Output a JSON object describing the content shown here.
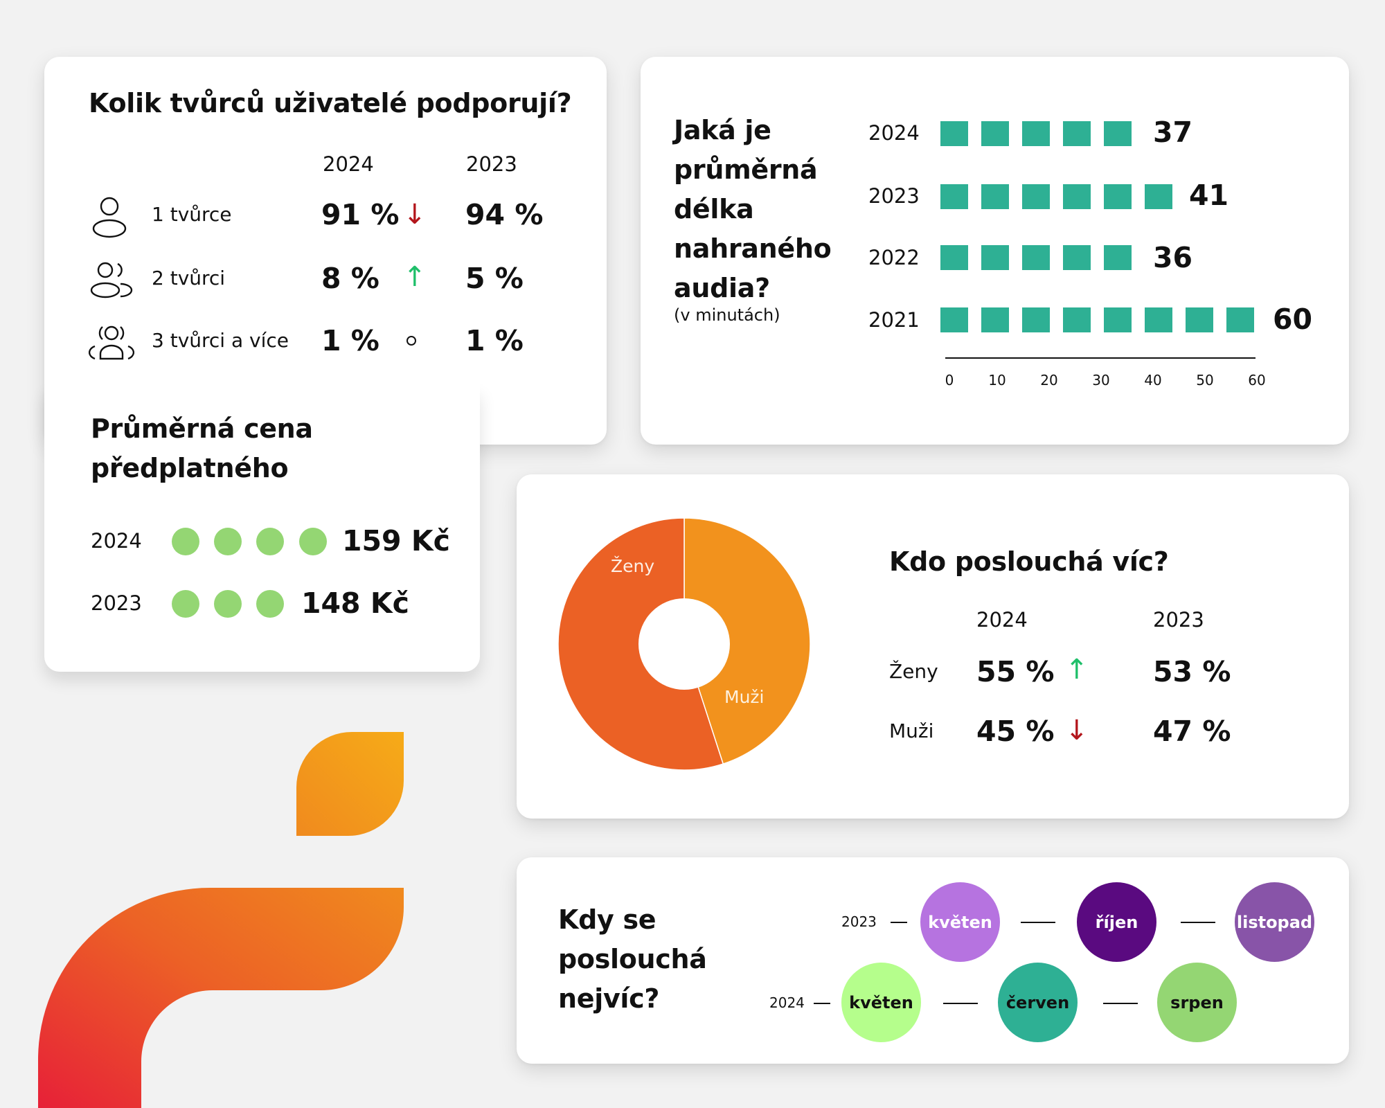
{
  "colors": {
    "background": "#f2f2f2",
    "card": "#ffffff",
    "bar": "#2eb094",
    "price_dot": "#94d673",
    "arrow_down": "#b3161c",
    "arrow_up": "#1fbf6a",
    "pie_zeny": "#eb6125",
    "pie_muzi": "#f2921d"
  },
  "creators": {
    "title": "Kolik tvůrců uživatelé podporují?",
    "col_2024": "2024",
    "col_2023": "2023",
    "rows": [
      {
        "icon": "person-icon",
        "label": "1 tvůrce",
        "v2024": "91 %",
        "trend": "down",
        "trend_glyph": "↓",
        "v2023": "94 %"
      },
      {
        "icon": "two-people-icon",
        "label": "2 tvůrci",
        "v2024": "8 %",
        "trend": "up",
        "trend_glyph": "↑",
        "v2023": "5 %"
      },
      {
        "icon": "group-icon",
        "label": "3 tvůrci a více",
        "v2024": "1 %",
        "trend": "same",
        "trend_glyph": "○",
        "v2023": "1 %"
      }
    ]
  },
  "price": {
    "title_line1": "Průměrná cena",
    "title_line2": "předplatného",
    "rows": [
      {
        "year": "2024",
        "dots": 4,
        "value": "159 Kč"
      },
      {
        "year": "2023",
        "dots": 3,
        "value": "148 Kč"
      }
    ]
  },
  "duration": {
    "title_lines": [
      "Jaká je",
      "průměrná",
      "délka",
      "nahraného",
      "audia?"
    ],
    "subtitle": "(v minutách)",
    "rows": [
      {
        "year": "2024",
        "squares": 5,
        "value": "37"
      },
      {
        "year": "2023",
        "squares": 6,
        "value": "41"
      },
      {
        "year": "2022",
        "squares": 5,
        "value": "36"
      },
      {
        "year": "2021",
        "squares": 8,
        "value": "60"
      }
    ],
    "ticks": [
      "0",
      "10",
      "20",
      "30",
      "40",
      "50",
      "60"
    ]
  },
  "gender": {
    "title": "Kdo poslouchá víc?",
    "col_2024": "2024",
    "col_2023": "2023",
    "pie_label_zeny": "Ženy",
    "pie_label_muzi": "Muži",
    "rows": [
      {
        "label": "Ženy",
        "v2024": "55 %",
        "trend": "up",
        "trend_glyph": "↑",
        "v2023": "53 %"
      },
      {
        "label": "Muži",
        "v2024": "45 %",
        "trend": "down",
        "trend_glyph": "↓",
        "v2023": "47 %"
      }
    ]
  },
  "peak": {
    "title_lines": [
      "Kdy se",
      "poslouchá",
      "nejvíc?"
    ],
    "row_2023": {
      "year": "2023",
      "months": [
        {
          "label": "květen",
          "color": "#b673e0",
          "text": "#ffffff"
        },
        {
          "label": "říjen",
          "color": "#5a0a80",
          "text": "#ffffff"
        },
        {
          "label": "listopad",
          "color": "#8854a8",
          "text": "#ffffff"
        }
      ]
    },
    "row_2024": {
      "year": "2024",
      "months": [
        {
          "label": "květen",
          "color": "#b5fe8c",
          "text": "#111111"
        },
        {
          "label": "červen",
          "color": "#2eb094",
          "text": "#111111"
        },
        {
          "label": "srpen",
          "color": "#94d673",
          "text": "#111111"
        }
      ]
    }
  },
  "chart_data": [
    {
      "type": "table",
      "title": "Kolik tvůrců uživatelé podporují?",
      "categories": [
        "1 tvůrce",
        "2 tvůrci",
        "3 tvůrci a více"
      ],
      "series": [
        {
          "name": "2024",
          "values": [
            91,
            8,
            1
          ]
        },
        {
          "name": "2023",
          "values": [
            94,
            5,
            1
          ]
        }
      ],
      "unit": "%",
      "trend": [
        "down",
        "up",
        "same"
      ]
    },
    {
      "type": "bar",
      "title": "Průměrná cena předplatného",
      "categories": [
        "2024",
        "2023"
      ],
      "values": [
        159,
        148
      ],
      "unit": "Kč",
      "pictogram_counts": [
        4,
        3
      ]
    },
    {
      "type": "bar",
      "orientation": "horizontal",
      "title": "Jaká je průměrná délka nahraného audia?",
      "subtitle": "(v minutách)",
      "categories": [
        "2024",
        "2023",
        "2022",
        "2021"
      ],
      "values": [
        37,
        41,
        36,
        60
      ],
      "xlim": [
        0,
        60
      ],
      "xticks": [
        0,
        10,
        20,
        30,
        40,
        50,
        60
      ],
      "grid": false
    },
    {
      "type": "pie",
      "donut": true,
      "title": "Kdo poslouchá víc?",
      "categories": [
        "Ženy",
        "Muži"
      ],
      "values": [
        55,
        45
      ],
      "comparison": {
        "2024": {
          "Ženy": 55,
          "Muži": 45
        },
        "2023": {
          "Ženy": 53,
          "Muži": 47
        }
      }
    },
    {
      "type": "table",
      "title": "Kdy se poslouchá nejvíc?",
      "rows": [
        {
          "year": "2023",
          "months": [
            "květen",
            "říjen",
            "listopad"
          ]
        },
        {
          "year": "2024",
          "months": [
            "květen",
            "červen",
            "srpen"
          ]
        }
      ]
    }
  ]
}
